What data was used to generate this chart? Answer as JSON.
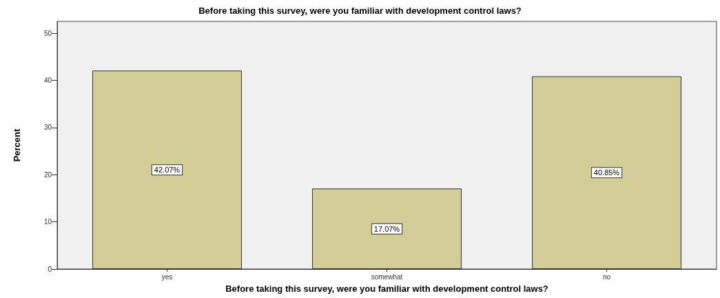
{
  "chart_data": {
    "type": "bar",
    "title": "Before taking this survey, were you familiar with development control laws?",
    "xlabel": "Before taking this survey, were you familiar with development control laws?",
    "ylabel": "Percent",
    "categories": [
      "yes",
      "somewhat",
      "no"
    ],
    "values": [
      42.07,
      17.07,
      40.85
    ],
    "value_labels": [
      "42.07%",
      "17.07%",
      "40.85%"
    ],
    "color": "#d3ce97",
    "ylim": [
      0,
      52.5
    ],
    "yticks": [
      0,
      10,
      20,
      30,
      40,
      50
    ],
    "grid": false
  }
}
